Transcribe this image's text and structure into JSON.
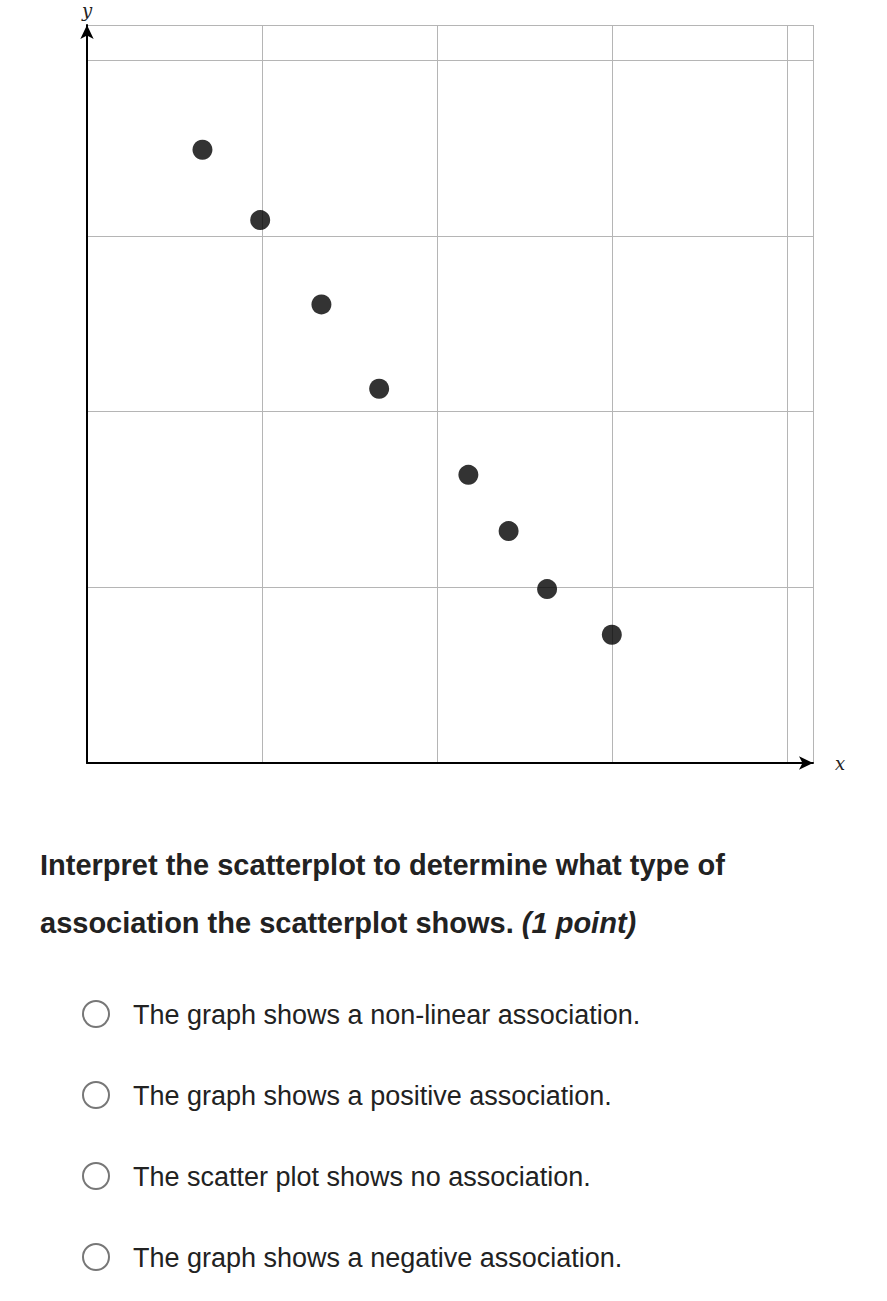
{
  "chart_data": {
    "type": "scatter",
    "x_label": "x",
    "y_label": "y",
    "x": [
      0.66,
      0.99,
      1.34,
      1.67,
      2.18,
      2.41,
      2.63,
      3.0
    ],
    "values": [
      3.49,
      3.09,
      2.61,
      2.13,
      1.64,
      1.32,
      0.99,
      0.73
    ],
    "color": "#000000",
    "marker": "circle",
    "xlim": [
      0,
      4.15
    ],
    "ylim": [
      0,
      4.2
    ],
    "xticks": [
      0,
      1,
      2,
      3,
      4
    ],
    "yticks": [
      0,
      1,
      2,
      3,
      4
    ],
    "grid": true,
    "tick_labels": false
  },
  "question": {
    "text": "Interpret the scatterplot to determine what type of association the scatterplot shows.",
    "note": "(1 point)",
    "options": [
      "The graph shows a non-linear association.",
      "The graph shows a positive association.",
      "The scatter plot shows no association.",
      "The graph shows a negative association."
    ]
  }
}
